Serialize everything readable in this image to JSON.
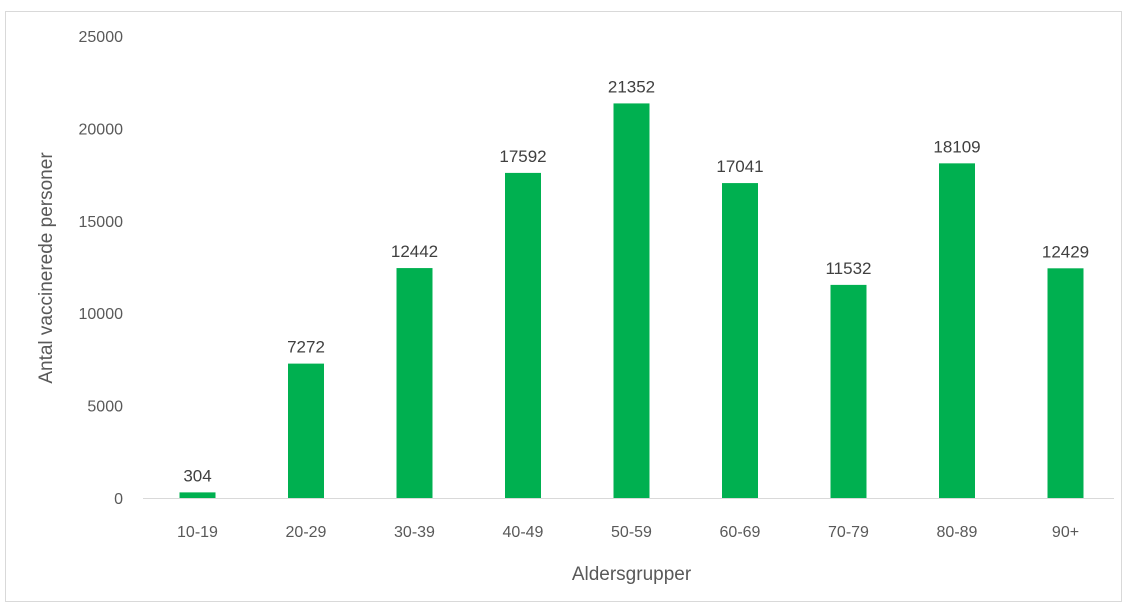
{
  "chart_data": {
    "type": "bar",
    "categories": [
      "10-19",
      "20-29",
      "30-39",
      "40-49",
      "50-59",
      "60-69",
      "70-79",
      "80-89",
      "90+"
    ],
    "values": [
      304,
      7272,
      12442,
      17592,
      21352,
      17041,
      11532,
      18109,
      12429
    ],
    "data_labels": [
      "304",
      "7272",
      "12442",
      "17592",
      "21352",
      "17041",
      "11532",
      "18109",
      "12429"
    ],
    "xlabel": "Aldersgrupper",
    "ylabel": "Antal vaccinerede personer",
    "ylim": [
      0,
      25000
    ],
    "yticks": [
      "0",
      "5000",
      "10000",
      "15000",
      "20000",
      "25000"
    ],
    "grid": false,
    "bar_color": "#00b050"
  }
}
